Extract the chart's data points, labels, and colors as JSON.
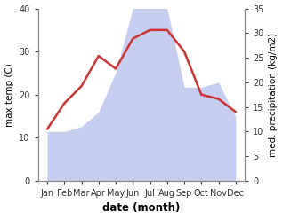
{
  "months": [
    "Jan",
    "Feb",
    "Mar",
    "Apr",
    "May",
    "Jun",
    "Jul",
    "Aug",
    "Sep",
    "Oct",
    "Nov",
    "Dec"
  ],
  "temperature": [
    12,
    18,
    22,
    29,
    26,
    33,
    35,
    35,
    30,
    20,
    19,
    16
  ],
  "precipitation": [
    10,
    10,
    11,
    14,
    22,
    35,
    36,
    35,
    19,
    19,
    20,
    13
  ],
  "temp_color": "#cc3333",
  "precip_fill_color": "#c5cef0",
  "temp_ylim": [
    0,
    40
  ],
  "precip_ylim": [
    0,
    35
  ],
  "xlabel": "date (month)",
  "ylabel_left": "max temp (C)",
  "ylabel_right": "med. precipitation (kg/m2)",
  "temp_yticks": [
    0,
    10,
    20,
    30,
    40
  ],
  "precip_yticks": [
    0,
    5,
    10,
    15,
    20,
    25,
    30,
    35
  ],
  "bg_color": "#ffffff",
  "label_fontsize": 7.5,
  "tick_fontsize": 7.0,
  "xlabel_fontsize": 8.5
}
